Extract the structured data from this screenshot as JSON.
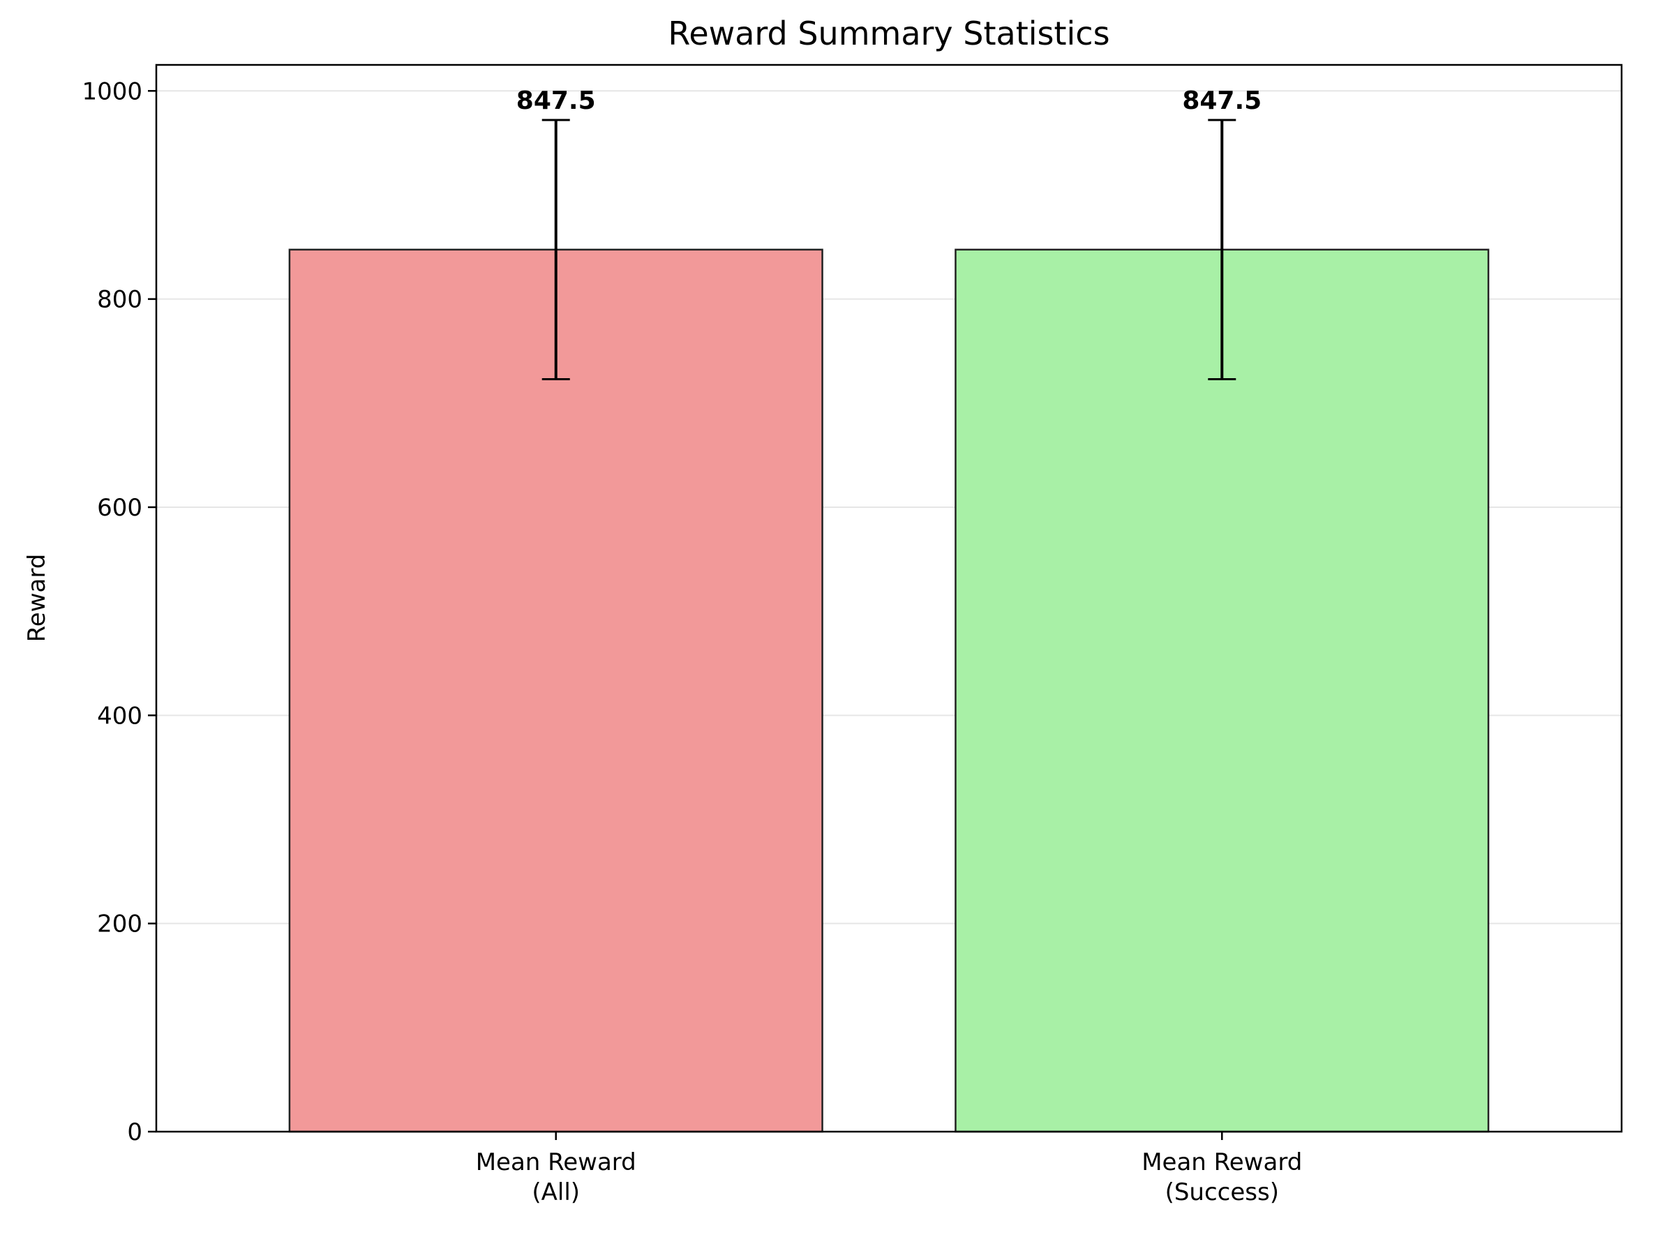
{
  "chart_data": {
    "type": "bar",
    "title": "Reward Summary Statistics",
    "xlabel": "",
    "ylabel": "Reward",
    "categories": [
      [
        "Mean Reward",
        "(All)"
      ],
      [
        "Mean Reward",
        "(Success)"
      ]
    ],
    "values": [
      847.5,
      847.5
    ],
    "error": [
      124.5,
      124.5
    ],
    "data_labels": [
      "847.5",
      "847.5"
    ],
    "bar_colors": [
      "#f29999",
      "#a8f0a6"
    ],
    "bar_edge_color": "#222222",
    "error_bar_color": "#000000",
    "grid_color": "#e6e6e6",
    "ylim": [
      0,
      1025
    ],
    "yticks": [
      0,
      200,
      400,
      600,
      800,
      1000
    ],
    "ytick_labels": [
      "0",
      "200",
      "400",
      "600",
      "800",
      "1000"
    ],
    "grid": "y",
    "legend": "none"
  }
}
